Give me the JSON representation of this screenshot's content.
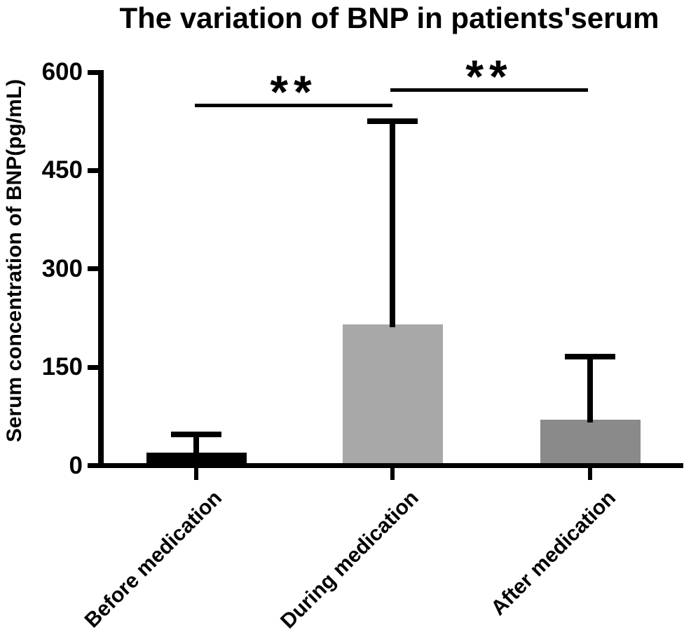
{
  "title": "The variation of BNP in patients'serum",
  "chart_data": {
    "type": "bar",
    "title": "The variation of BNP in patients'serum",
    "ylabel": "Serum concentration of BNP(pg/mL)",
    "xlabel": "",
    "categories": [
      "Before medication",
      "During medication",
      "After medication"
    ],
    "values": [
      20,
      215,
      70
    ],
    "errors_sd_upper": [
      28,
      310,
      96
    ],
    "error_bar_tops": [
      48,
      525,
      166
    ],
    "bar_colors": [
      "#000000",
      "#a8a8a8",
      "#8a8a8a"
    ],
    "ylim": [
      0,
      600
    ],
    "yticks": [
      0,
      150,
      300,
      450,
      600
    ],
    "ytick_labels": [
      "0",
      "150",
      "300",
      "450",
      "600"
    ],
    "grid": false,
    "legend": false,
    "orientation": "vertical",
    "error_bars": "upper only, capped",
    "significance_annotations": [
      {
        "from": "Before medication",
        "to": "During medication",
        "label": "**"
      },
      {
        "from": "During medication",
        "to": "After medication",
        "label": "**"
      }
    ],
    "axis_color": "#000000",
    "background_color": "#ffffff"
  }
}
